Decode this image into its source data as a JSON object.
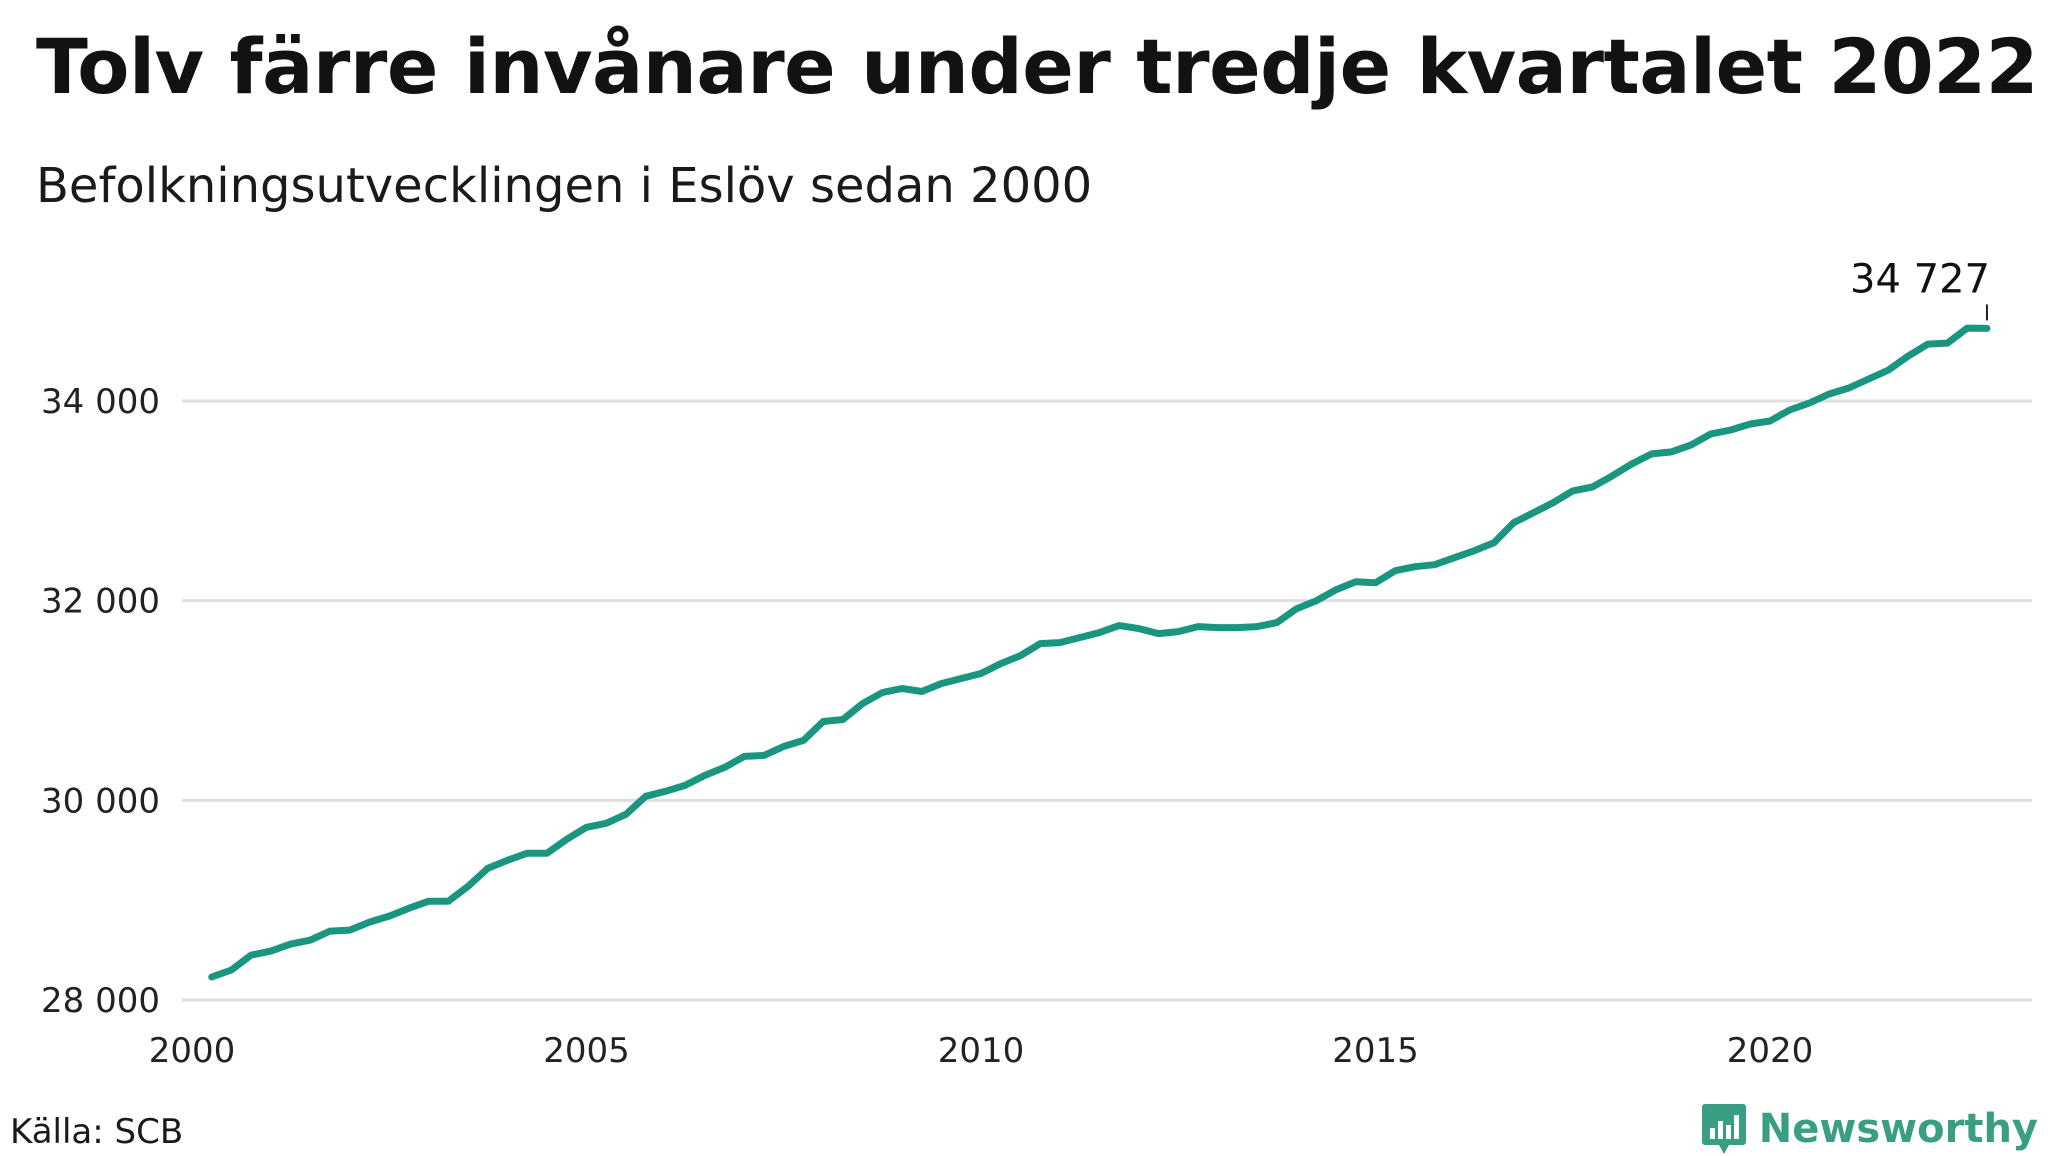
{
  "title": "Tolv färre invånare under tredje kvartalet 2022",
  "subtitle": "Befolkningsutvecklingen i Eslöv sedan 2000",
  "source": "Källa: SCB",
  "brand": {
    "name": "Newsworthy",
    "color": "#3a9e85",
    "icon": "bar-chart-icon"
  },
  "chart_data": {
    "type": "line",
    "title": "Tolv färre invånare under tredje kvartalet 2022",
    "subtitle": "Befolkningsutvecklingen i Eslöv sedan 2000",
    "xlabel": "",
    "ylabel": "",
    "xlim": [
      2000,
      2023.3
    ],
    "ylim": [
      28000,
      35500
    ],
    "x_ticks": [
      2000,
      2005,
      2010,
      2015,
      2020
    ],
    "y_ticks": [
      28000,
      30000,
      32000,
      34000
    ],
    "x_tick_labels": [
      "2000",
      "2005",
      "2010",
      "2015",
      "2020"
    ],
    "y_tick_labels": [
      "28 000",
      "30 000",
      "32 000",
      "34 000"
    ],
    "grid": "horizontal",
    "line_color": "#1a9680",
    "grid_color": "#dedede",
    "last_label": "34 727",
    "series": [
      {
        "name": "",
        "x": [
          2000.25,
          2000.5,
          2000.75,
          2001.0,
          2001.25,
          2001.5,
          2001.75,
          2002.0,
          2002.25,
          2002.5,
          2002.75,
          2003.0,
          2003.25,
          2003.5,
          2003.75,
          2004.0,
          2004.25,
          2004.5,
          2004.75,
          2005.0,
          2005.25,
          2005.5,
          2005.75,
          2006.0,
          2006.25,
          2006.5,
          2006.75,
          2007.0,
          2007.25,
          2007.5,
          2007.75,
          2008.0,
          2008.25,
          2008.5,
          2008.75,
          2009.0,
          2009.25,
          2009.5,
          2009.75,
          2010.0,
          2010.25,
          2010.5,
          2010.75,
          2011.0,
          2011.25,
          2011.5,
          2011.75,
          2012.0,
          2012.25,
          2012.5,
          2012.75,
          2013.0,
          2013.25,
          2013.5,
          2013.75,
          2014.0,
          2014.25,
          2014.5,
          2014.75,
          2015.0,
          2015.25,
          2015.5,
          2015.75,
          2016.0,
          2016.25,
          2016.5,
          2016.75,
          2017.0,
          2017.25,
          2017.5,
          2017.75,
          2018.0,
          2018.25,
          2018.5,
          2018.75,
          2019.0,
          2019.25,
          2019.5,
          2019.75,
          2020.0,
          2020.25,
          2020.5,
          2020.75,
          2021.0,
          2021.25,
          2021.5,
          2021.75,
          2022.0,
          2022.25,
          2022.5,
          2022.75
        ],
        "values": [
          28230,
          28300,
          28450,
          28490,
          28560,
          28600,
          28690,
          28700,
          28780,
          28840,
          28920,
          28990,
          28990,
          29140,
          29320,
          29400,
          29470,
          29470,
          29610,
          29730,
          29770,
          29860,
          30040,
          30090,
          30150,
          30250,
          30330,
          30440,
          30450,
          30540,
          30600,
          30790,
          30810,
          30970,
          31080,
          31120,
          31090,
          31170,
          31220,
          31270,
          31370,
          31450,
          31570,
          31580,
          31630,
          31680,
          31750,
          31720,
          31670,
          31690,
          31740,
          31730,
          31730,
          31740,
          31780,
          31920,
          32000,
          32110,
          32190,
          32180,
          32300,
          32340,
          32360,
          32430,
          32500,
          32580,
          32780,
          32880,
          32980,
          33100,
          33140,
          33250,
          33370,
          33470,
          33490,
          33560,
          33670,
          33710,
          33770,
          33800,
          33910,
          33980,
          34070,
          34130,
          34220,
          34310,
          34450,
          34570,
          34580,
          34730,
          34727
        ]
      }
    ]
  }
}
